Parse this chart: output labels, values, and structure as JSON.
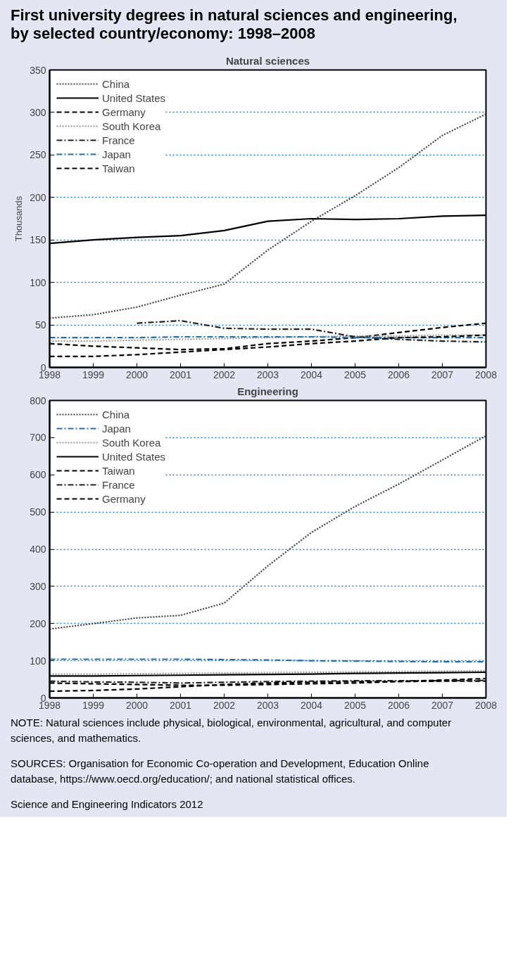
{
  "chart_data": [
    {
      "type": "line",
      "title": "First university degrees in natural sciences and engineering, by selected country/economy: 1998–2008",
      "subtitle": "Natural sciences",
      "ylabel": "Thousands",
      "x": [
        1998,
        1999,
        2000,
        2001,
        2002,
        2003,
        2004,
        2005,
        2006,
        2007,
        2008
      ],
      "xlim": [
        1998,
        2008
      ],
      "xticks": [
        1998,
        1999,
        2000,
        2001,
        2002,
        2003,
        2004,
        2005,
        2006,
        2007,
        2008
      ],
      "ylim": [
        0,
        350
      ],
      "yticks": [
        0,
        50,
        100,
        150,
        200,
        250,
        300,
        350
      ],
      "grid": "y",
      "legend": "top left",
      "series": [
        {
          "name": "China",
          "color": "#444444",
          "line_style": "dotted",
          "values": [
            58,
            62,
            71,
            85,
            98,
            138,
            172,
            202,
            235,
            273,
            298
          ]
        },
        {
          "name": "United States",
          "color": "#000000",
          "line_style": "solid",
          "values": [
            146,
            150,
            153,
            155,
            161,
            172,
            175,
            174,
            175,
            178,
            179
          ]
        },
        {
          "name": "Germany",
          "color": "#000000",
          "line_style": "dashed",
          "values": [
            28,
            25,
            23,
            21,
            22,
            28,
            31,
            35,
            41,
            47,
            52
          ]
        },
        {
          "name": "South Korea",
          "color": "#999999",
          "line_style": "dotted",
          "values": [
            31,
            31,
            32,
            33,
            34,
            35,
            36,
            37,
            37,
            38,
            38
          ]
        },
        {
          "name": "France",
          "color": "#222222",
          "line_style": "dashdot",
          "values": [
            null,
            null,
            52,
            55,
            46,
            45,
            45,
            36,
            33,
            31,
            30
          ]
        },
        {
          "name": "Japan",
          "color": "#1f6fb5",
          "line_style": "dashdot",
          "values": [
            35,
            35,
            35,
            36,
            36,
            36,
            36,
            35,
            35,
            35,
            35
          ]
        },
        {
          "name": "Taiwan",
          "color": "#000000",
          "line_style": "dashed",
          "values": [
            13,
            13,
            15,
            18,
            21,
            24,
            28,
            31,
            35,
            36,
            38
          ]
        }
      ]
    },
    {
      "type": "line",
      "title": "Engineering",
      "x": [
        1998,
        1999,
        2000,
        2001,
        2002,
        2003,
        2004,
        2005,
        2006,
        2007,
        2008
      ],
      "xlim": [
        1998,
        2008
      ],
      "xticks": [
        1998,
        1999,
        2000,
        2001,
        2002,
        2003,
        2004,
        2005,
        2006,
        2007,
        2008
      ],
      "ylim": [
        0,
        800
      ],
      "yticks": [
        0,
        100,
        200,
        300,
        400,
        500,
        600,
        700,
        800
      ],
      "grid": "y",
      "legend": "top left",
      "annotations": [
        "NOTE: Natural sciences include physical, biological, environmental, agricultural, and computer sciences, and mathematics.",
        "SOURCES: Organisation for Economic Co-operation and Development, Education Online database, https://www.oecd.org/education/; and national statistical offices.",
        "Science and Engineering Indicators 2012"
      ],
      "series": [
        {
          "name": "China",
          "color": "#444444",
          "line_style": "dotted",
          "values": [
            185,
            200,
            215,
            222,
            255,
            355,
            445,
            515,
            575,
            640,
            705
          ]
        },
        {
          "name": "Japan",
          "color": "#1f6fb5",
          "line_style": "dashdot",
          "values": [
            104,
            104,
            104,
            104,
            103,
            102,
            100,
            99,
            98,
            97,
            97
          ]
        },
        {
          "name": "South Korea",
          "color": "#999999",
          "line_style": "dotted",
          "values": [
            64,
            64,
            65,
            66,
            67,
            68,
            69,
            70,
            71,
            72,
            73
          ]
        },
        {
          "name": "United States",
          "color": "#000000",
          "line_style": "solid",
          "values": [
            59,
            59,
            60,
            61,
            62,
            63,
            64,
            66,
            67,
            68,
            69
          ]
        },
        {
          "name": "Taiwan",
          "color": "#000000",
          "line_style": "dashed",
          "values": [
            18,
            20,
            24,
            30,
            36,
            40,
            42,
            44,
            44,
            45,
            45
          ]
        },
        {
          "name": "France",
          "color": "#222222",
          "line_style": "dashdot",
          "values": [
            45,
            43,
            42,
            40,
            42,
            44,
            45,
            46,
            46,
            46,
            47
          ]
        },
        {
          "name": "Germany",
          "color": "#000000",
          "line_style": "dashed",
          "values": [
            40,
            38,
            36,
            34,
            34,
            36,
            38,
            40,
            44,
            48,
            52
          ]
        }
      ]
    }
  ]
}
